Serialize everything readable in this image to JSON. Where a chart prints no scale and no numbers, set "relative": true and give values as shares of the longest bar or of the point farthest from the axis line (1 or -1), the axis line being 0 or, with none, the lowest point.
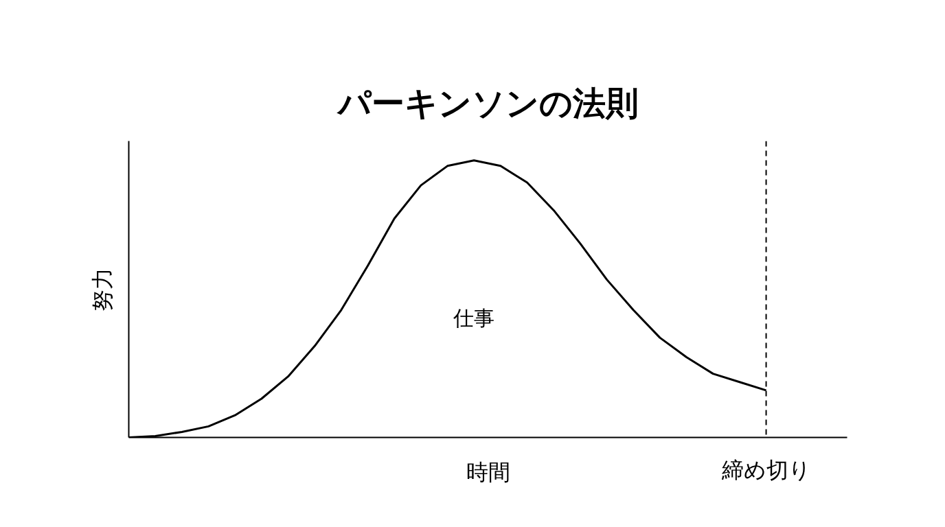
{
  "chart_data": {
    "type": "line",
    "title": "パーキンソンの法則",
    "xlabel": "時間",
    "ylabel": "努力",
    "relative": true,
    "line_style": "solid",
    "categories": [
      null,
      null,
      null,
      null,
      null,
      null,
      null,
      null,
      null,
      null,
      null,
      null,
      null,
      null,
      null,
      null,
      null,
      null,
      null,
      null,
      null,
      null,
      null,
      null,
      null
    ],
    "series": [
      {
        "color": "#000000",
        "values": [
          0,
          0.005,
          0.02,
          0.04,
          0.08,
          0.14,
          0.22,
          0.33,
          0.46,
          0.62,
          0.79,
          0.91,
          0.98,
          1,
          0.98,
          0.92,
          0.82,
          0.7,
          0.57,
          0.46,
          0.36,
          0.29,
          0.23,
          0.2,
          0.17
        ]
      }
    ],
    "annotations": [
      "仕事",
      "締め切り"
    ]
  }
}
